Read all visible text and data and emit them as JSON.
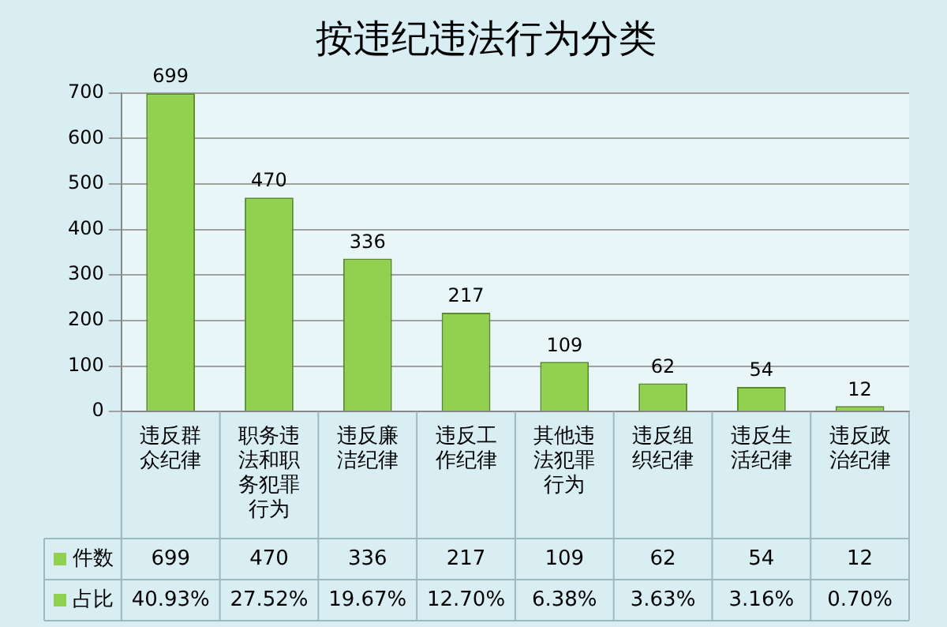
{
  "chart_data": {
    "type": "bar",
    "title": "按违纪违法行为分类",
    "categories": [
      "违反群众纪律",
      "职务违法和职务犯罪行为",
      "违反廉洁纪律",
      "违反工作纪律",
      "其他违法犯罪行为",
      "违反组织纪律",
      "违反生活纪律",
      "违反政治纪律"
    ],
    "series": [
      {
        "name": "件数",
        "color": "#92d050",
        "values": [
          699,
          470,
          336,
          217,
          109,
          62,
          54,
          12
        ],
        "value_labels": [
          "699",
          "470",
          "336",
          "217",
          "109",
          "62",
          "54",
          "12"
        ]
      }
    ],
    "ylim": [
      0,
      700
    ],
    "yticks": [
      0,
      100,
      200,
      300,
      400,
      500,
      600,
      700
    ],
    "grid": "y",
    "legend": "bottom left",
    "data_labels": true,
    "annotations": [
      "占比",
      "40.93%",
      "27.52%",
      "19.67%",
      "12.70%",
      "6.38%",
      "3.63%",
      "3.16%",
      "0.70%"
    ]
  }
}
